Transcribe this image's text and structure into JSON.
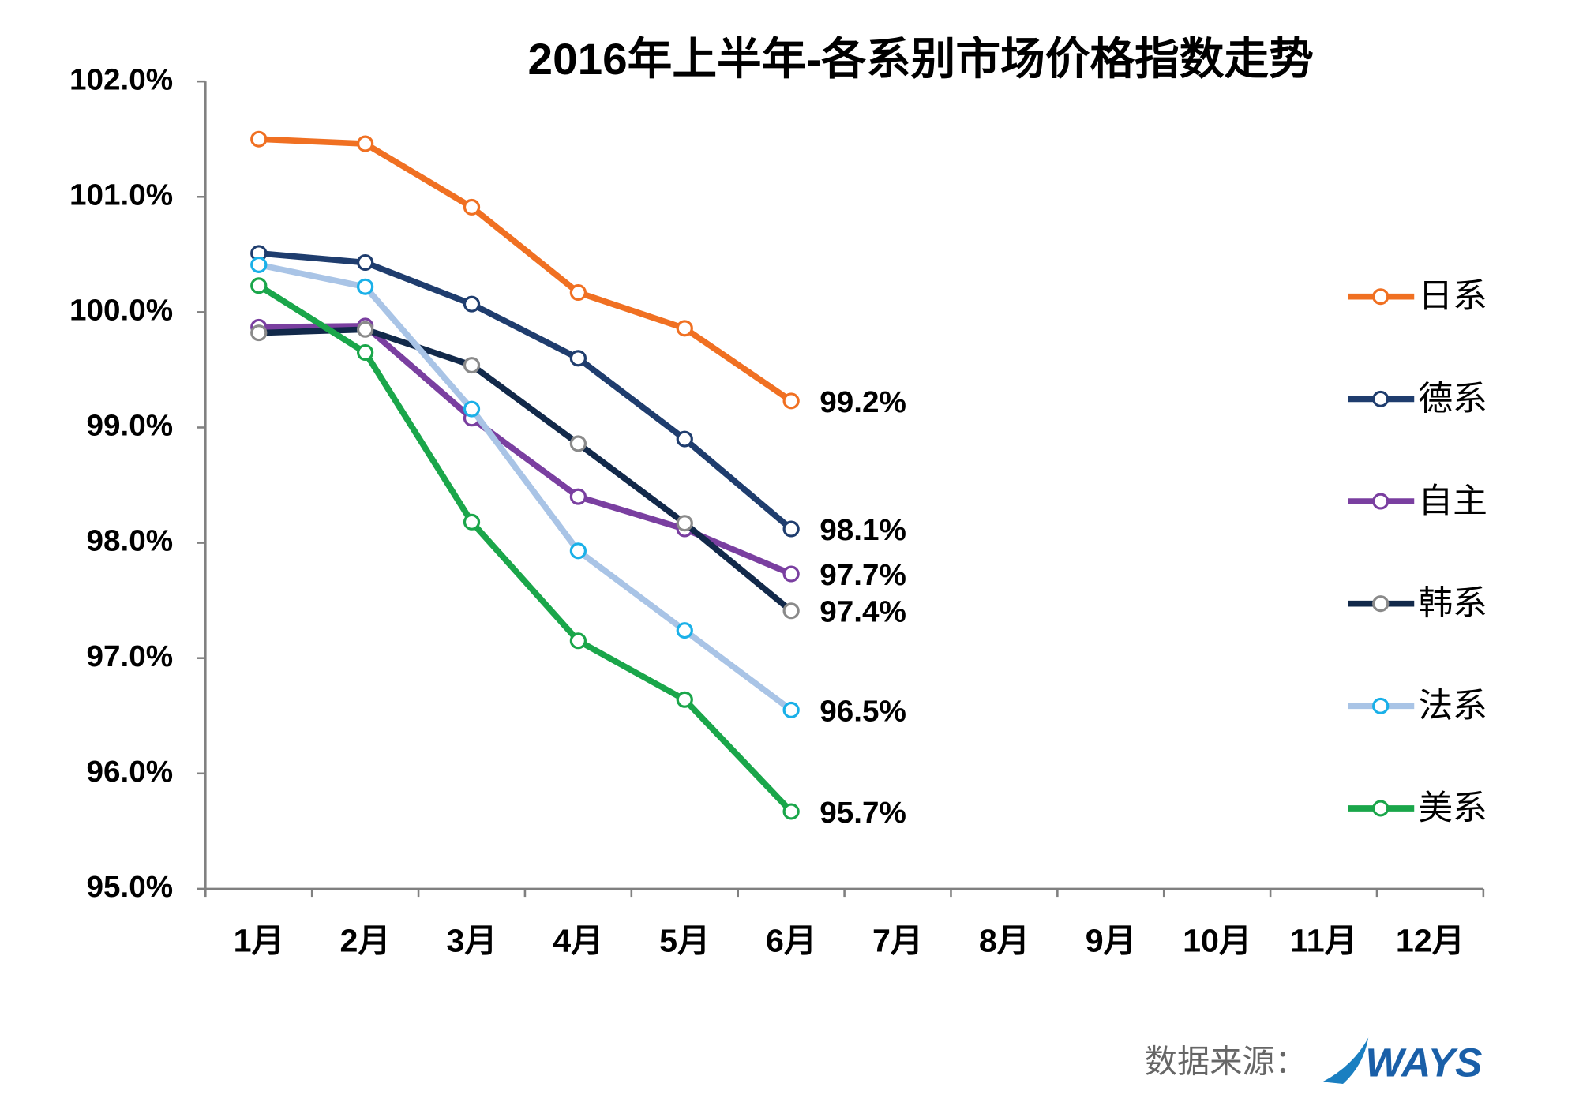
{
  "chart_data": {
    "type": "line",
    "title": "2016年上半年-各系别市场价格指数走势",
    "categories": [
      "1月",
      "2月",
      "3月",
      "4月",
      "5月",
      "6月",
      "7月",
      "8月",
      "9月",
      "10月",
      "11月",
      "12月"
    ],
    "series": [
      {
        "name": "日系",
        "color": "#f07022",
        "marker_color": "#f07022",
        "values": [
          101.5,
          101.46,
          100.91,
          100.17,
          99.86,
          99.23,
          null,
          null,
          null,
          null,
          null,
          null
        ],
        "value_labels": [
          null,
          null,
          null,
          null,
          null,
          "99.2%",
          null,
          null,
          null,
          null,
          null,
          null
        ]
      },
      {
        "name": "德系",
        "color": "#1f3d6e",
        "marker_color": "#1f3d6e",
        "values": [
          100.51,
          100.43,
          100.07,
          99.6,
          98.9,
          98.12,
          null,
          null,
          null,
          null,
          null,
          null
        ],
        "value_labels": [
          null,
          null,
          null,
          null,
          null,
          "98.1%",
          null,
          null,
          null,
          null,
          null,
          null
        ]
      },
      {
        "name": "自主",
        "color": "#7a3fa0",
        "marker_color": "#7a3fa0",
        "values": [
          99.87,
          99.88,
          99.08,
          98.4,
          98.12,
          97.73,
          null,
          null,
          null,
          null,
          null,
          null
        ],
        "value_labels": [
          null,
          null,
          null,
          null,
          null,
          "97.7%",
          null,
          null,
          null,
          null,
          null,
          null
        ]
      },
      {
        "name": "韩系",
        "color": "#12294a",
        "marker_color": "#8a8a8a",
        "values": [
          99.82,
          99.85,
          99.54,
          98.86,
          98.17,
          97.41,
          null,
          null,
          null,
          null,
          null,
          null
        ],
        "value_labels": [
          null,
          null,
          null,
          null,
          null,
          "97.4%",
          null,
          null,
          null,
          null,
          null,
          null
        ]
      },
      {
        "name": "法系",
        "color": "#a9c4e6",
        "marker_color": "#1ab0e8",
        "values": [
          100.41,
          100.22,
          99.16,
          97.93,
          97.24,
          96.55,
          null,
          null,
          null,
          null,
          null,
          null
        ],
        "value_labels": [
          null,
          null,
          null,
          null,
          null,
          "96.5%",
          null,
          null,
          null,
          null,
          null,
          null
        ]
      },
      {
        "name": "美系",
        "color": "#1aa64a",
        "marker_color": "#1aa64a",
        "values": [
          100.23,
          99.65,
          98.18,
          97.15,
          96.64,
          95.67,
          null,
          null,
          null,
          null,
          null,
          null
        ],
        "value_labels": [
          null,
          null,
          null,
          null,
          null,
          "95.7%",
          null,
          null,
          null,
          null,
          null,
          null
        ]
      }
    ],
    "ylim": [
      95,
      102
    ],
    "yticks": [
      {
        "value": 95,
        "label": "95.0%"
      },
      {
        "value": 96,
        "label": "96.0%"
      },
      {
        "value": 97,
        "label": "97.0%"
      },
      {
        "value": 98,
        "label": "98.0%"
      },
      {
        "value": 99,
        "label": "99.0%"
      },
      {
        "value": 100,
        "label": "100.0%"
      },
      {
        "value": 101,
        "label": "101.0%"
      },
      {
        "value": 102,
        "label": "102.0%"
      }
    ],
    "legend": "right",
    "source": "数据来源：",
    "logo": "WAYS"
  }
}
